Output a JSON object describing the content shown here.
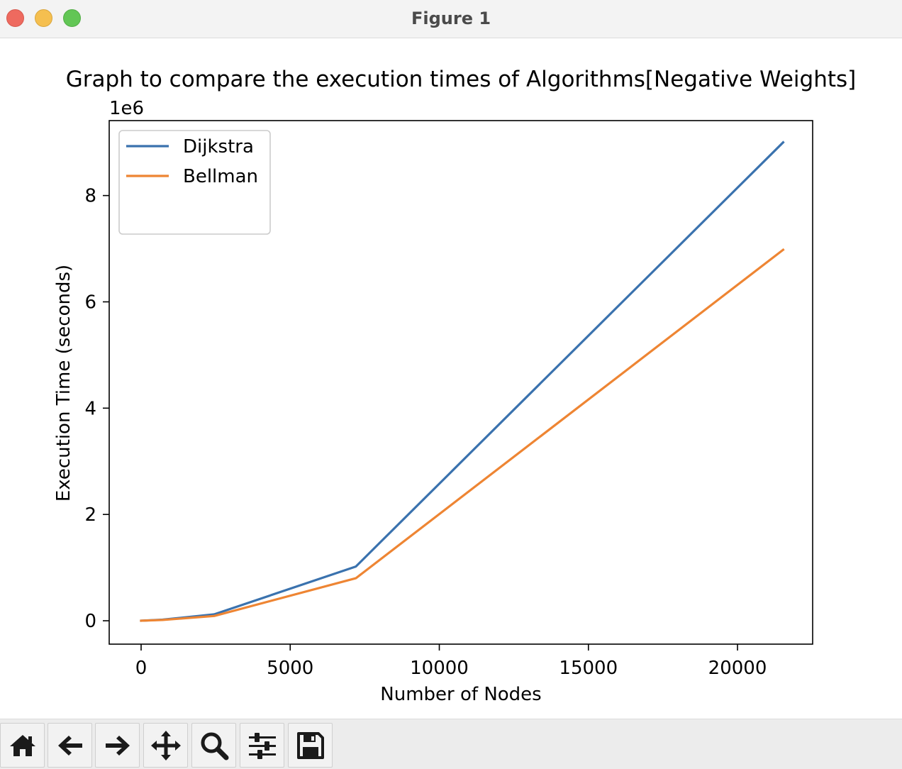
{
  "window": {
    "title": "Figure 1"
  },
  "chart_data": {
    "type": "line",
    "title": "Graph to compare the execution times of Algorithms[Negative Weights]",
    "xlabel": "Number of Nodes",
    "ylabel": "Execution Time (seconds)",
    "y_offset_label": "1e6",
    "xlim": [
      -1070,
      22520
    ],
    "ylim": [
      -440000,
      9410000
    ],
    "xticks": [
      0,
      5000,
      10000,
      15000,
      20000
    ],
    "xtick_labels": [
      "0",
      "5000",
      "10000",
      "15000",
      "20000"
    ],
    "yticks": [
      0,
      2000000,
      4000000,
      6000000,
      8000000
    ],
    "ytick_labels": [
      "0",
      "2",
      "4",
      "6",
      "8"
    ],
    "grid": false,
    "legend_position": "upper-left",
    "series": [
      {
        "name": "Dijkstra",
        "color": "#3a72ae",
        "x": [
          0,
          720,
          2450,
          7200,
          21530
        ],
        "y": [
          0,
          20000,
          120000,
          1020000,
          9000000
        ]
      },
      {
        "name": "Bellman",
        "color": "#ee8533",
        "x": [
          0,
          720,
          2450,
          7200,
          21530
        ],
        "y": [
          0,
          15000,
          90000,
          800000,
          6980000
        ]
      }
    ]
  },
  "toolbar": {
    "buttons": [
      {
        "name": "home-button",
        "icon": "home-icon"
      },
      {
        "name": "back-button",
        "icon": "arrow-left-icon"
      },
      {
        "name": "forward-button",
        "icon": "arrow-right-icon"
      },
      {
        "name": "pan-button",
        "icon": "move-icon"
      },
      {
        "name": "zoom-button",
        "icon": "magnifier-icon"
      },
      {
        "name": "configure-subplots-button",
        "icon": "sliders-icon"
      },
      {
        "name": "save-button",
        "icon": "floppy-disk-icon"
      }
    ]
  }
}
